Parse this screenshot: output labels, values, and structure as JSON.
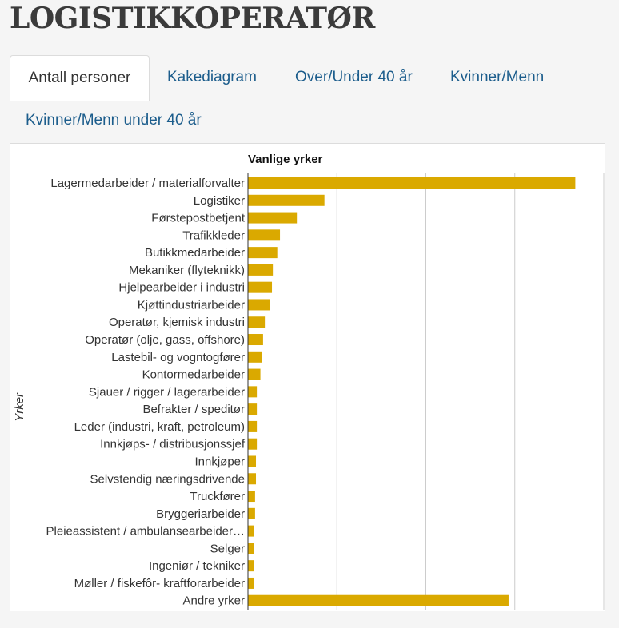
{
  "page": {
    "title": "LOGISTIKKOPERATØR"
  },
  "tabs": [
    {
      "label": "Antall personer",
      "active": true
    },
    {
      "label": "Kakediagram",
      "active": false
    },
    {
      "label": "Over/Under 40 år",
      "active": false
    },
    {
      "label": "Kvinner/Menn",
      "active": false
    },
    {
      "label": "Kvinner/Menn under 40 år",
      "active": false
    }
  ],
  "colors": {
    "bar": "#daa900",
    "grid": "#cccccc",
    "axis": "#333333",
    "label": "#333333"
  },
  "chart_data": {
    "type": "bar",
    "orientation": "horizontal",
    "title": "Vanlige yrker",
    "ylabel": "Yrker",
    "xlabel": "",
    "grid": true,
    "xlim": [
      0,
      400
    ],
    "categories": [
      "Lagermedarbeider / materialforvalter",
      "Logistiker",
      "Førstepostbetjent",
      "Trafikkleder",
      "Butikkmedarbeider",
      "Mekaniker (flyteknikk)",
      "Hjelpearbeider i industri",
      "Kjøttindustriarbeider",
      "Operatør, kjemisk industri",
      "Operatør (olje, gass, offshore)",
      "Lastebil- og vogntogfører",
      "Kontormedarbeider",
      "Sjauer / rigger / lagerarbeider",
      "Befrakter / speditør",
      "Leder (industri, kraft, petroleum)",
      "Innkjøps- / distribusjonssjef",
      "Innkjøper",
      "Selvstendig næringsdrivende",
      "Truckfører",
      "Bryggeriarbeider",
      "Pleieassistent / ambulansearbeider…",
      "Selger",
      "Ingeniør / tekniker",
      "Møller / fiskefôr- kraftforarbeider",
      "Andre yrker"
    ],
    "values": [
      368,
      86,
      55,
      36,
      33,
      28,
      27,
      25,
      19,
      17,
      16,
      14,
      10,
      10,
      10,
      10,
      9,
      9,
      8,
      8,
      7,
      7,
      7,
      7,
      293
    ]
  }
}
